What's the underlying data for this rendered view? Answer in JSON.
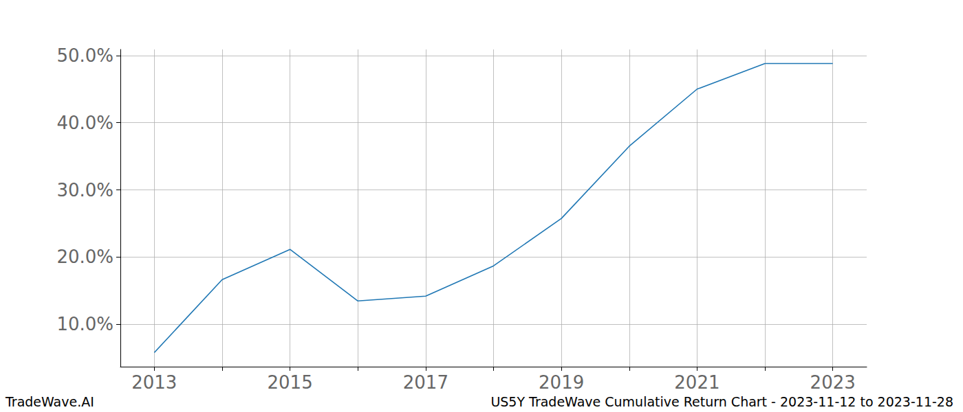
{
  "chart_data": {
    "type": "line",
    "x": [
      2013,
      2014,
      2015,
      2016,
      2017,
      2018,
      2019,
      2020,
      2021,
      2022,
      2023
    ],
    "values": [
      5.8,
      16.65,
      21.15,
      13.48,
      14.2,
      18.7,
      25.75,
      36.5,
      45.0,
      48.8,
      48.8
    ],
    "color": "#1f77b4",
    "xlim": [
      2012.5,
      2023.5
    ],
    "xticks": [
      2013,
      {
        "value": 2014,
        "label": null
      },
      2015,
      {
        "value": 2016,
        "label": null
      },
      2017,
      {
        "value": 2018,
        "label": null
      },
      2019,
      {
        "value": 2020,
        "label": null
      },
      2021,
      {
        "value": 2022,
        "label": null
      },
      2023
    ],
    "ylim": [
      3.7,
      50.9
    ],
    "yticks": [
      {
        "value": 10,
        "label": "10.0%"
      },
      {
        "value": 20,
        "label": "20.0%"
      },
      {
        "value": 30,
        "label": "30.0%"
      },
      {
        "value": 40,
        "label": "40.0%"
      },
      {
        "value": 50,
        "label": "50.0%"
      }
    ],
    "grid": true,
    "annotations": [
      "TradeWave.AI",
      "US5Y TradeWave Cumulative Return Chart - 2023-11-12 to 2023-11-28"
    ]
  }
}
